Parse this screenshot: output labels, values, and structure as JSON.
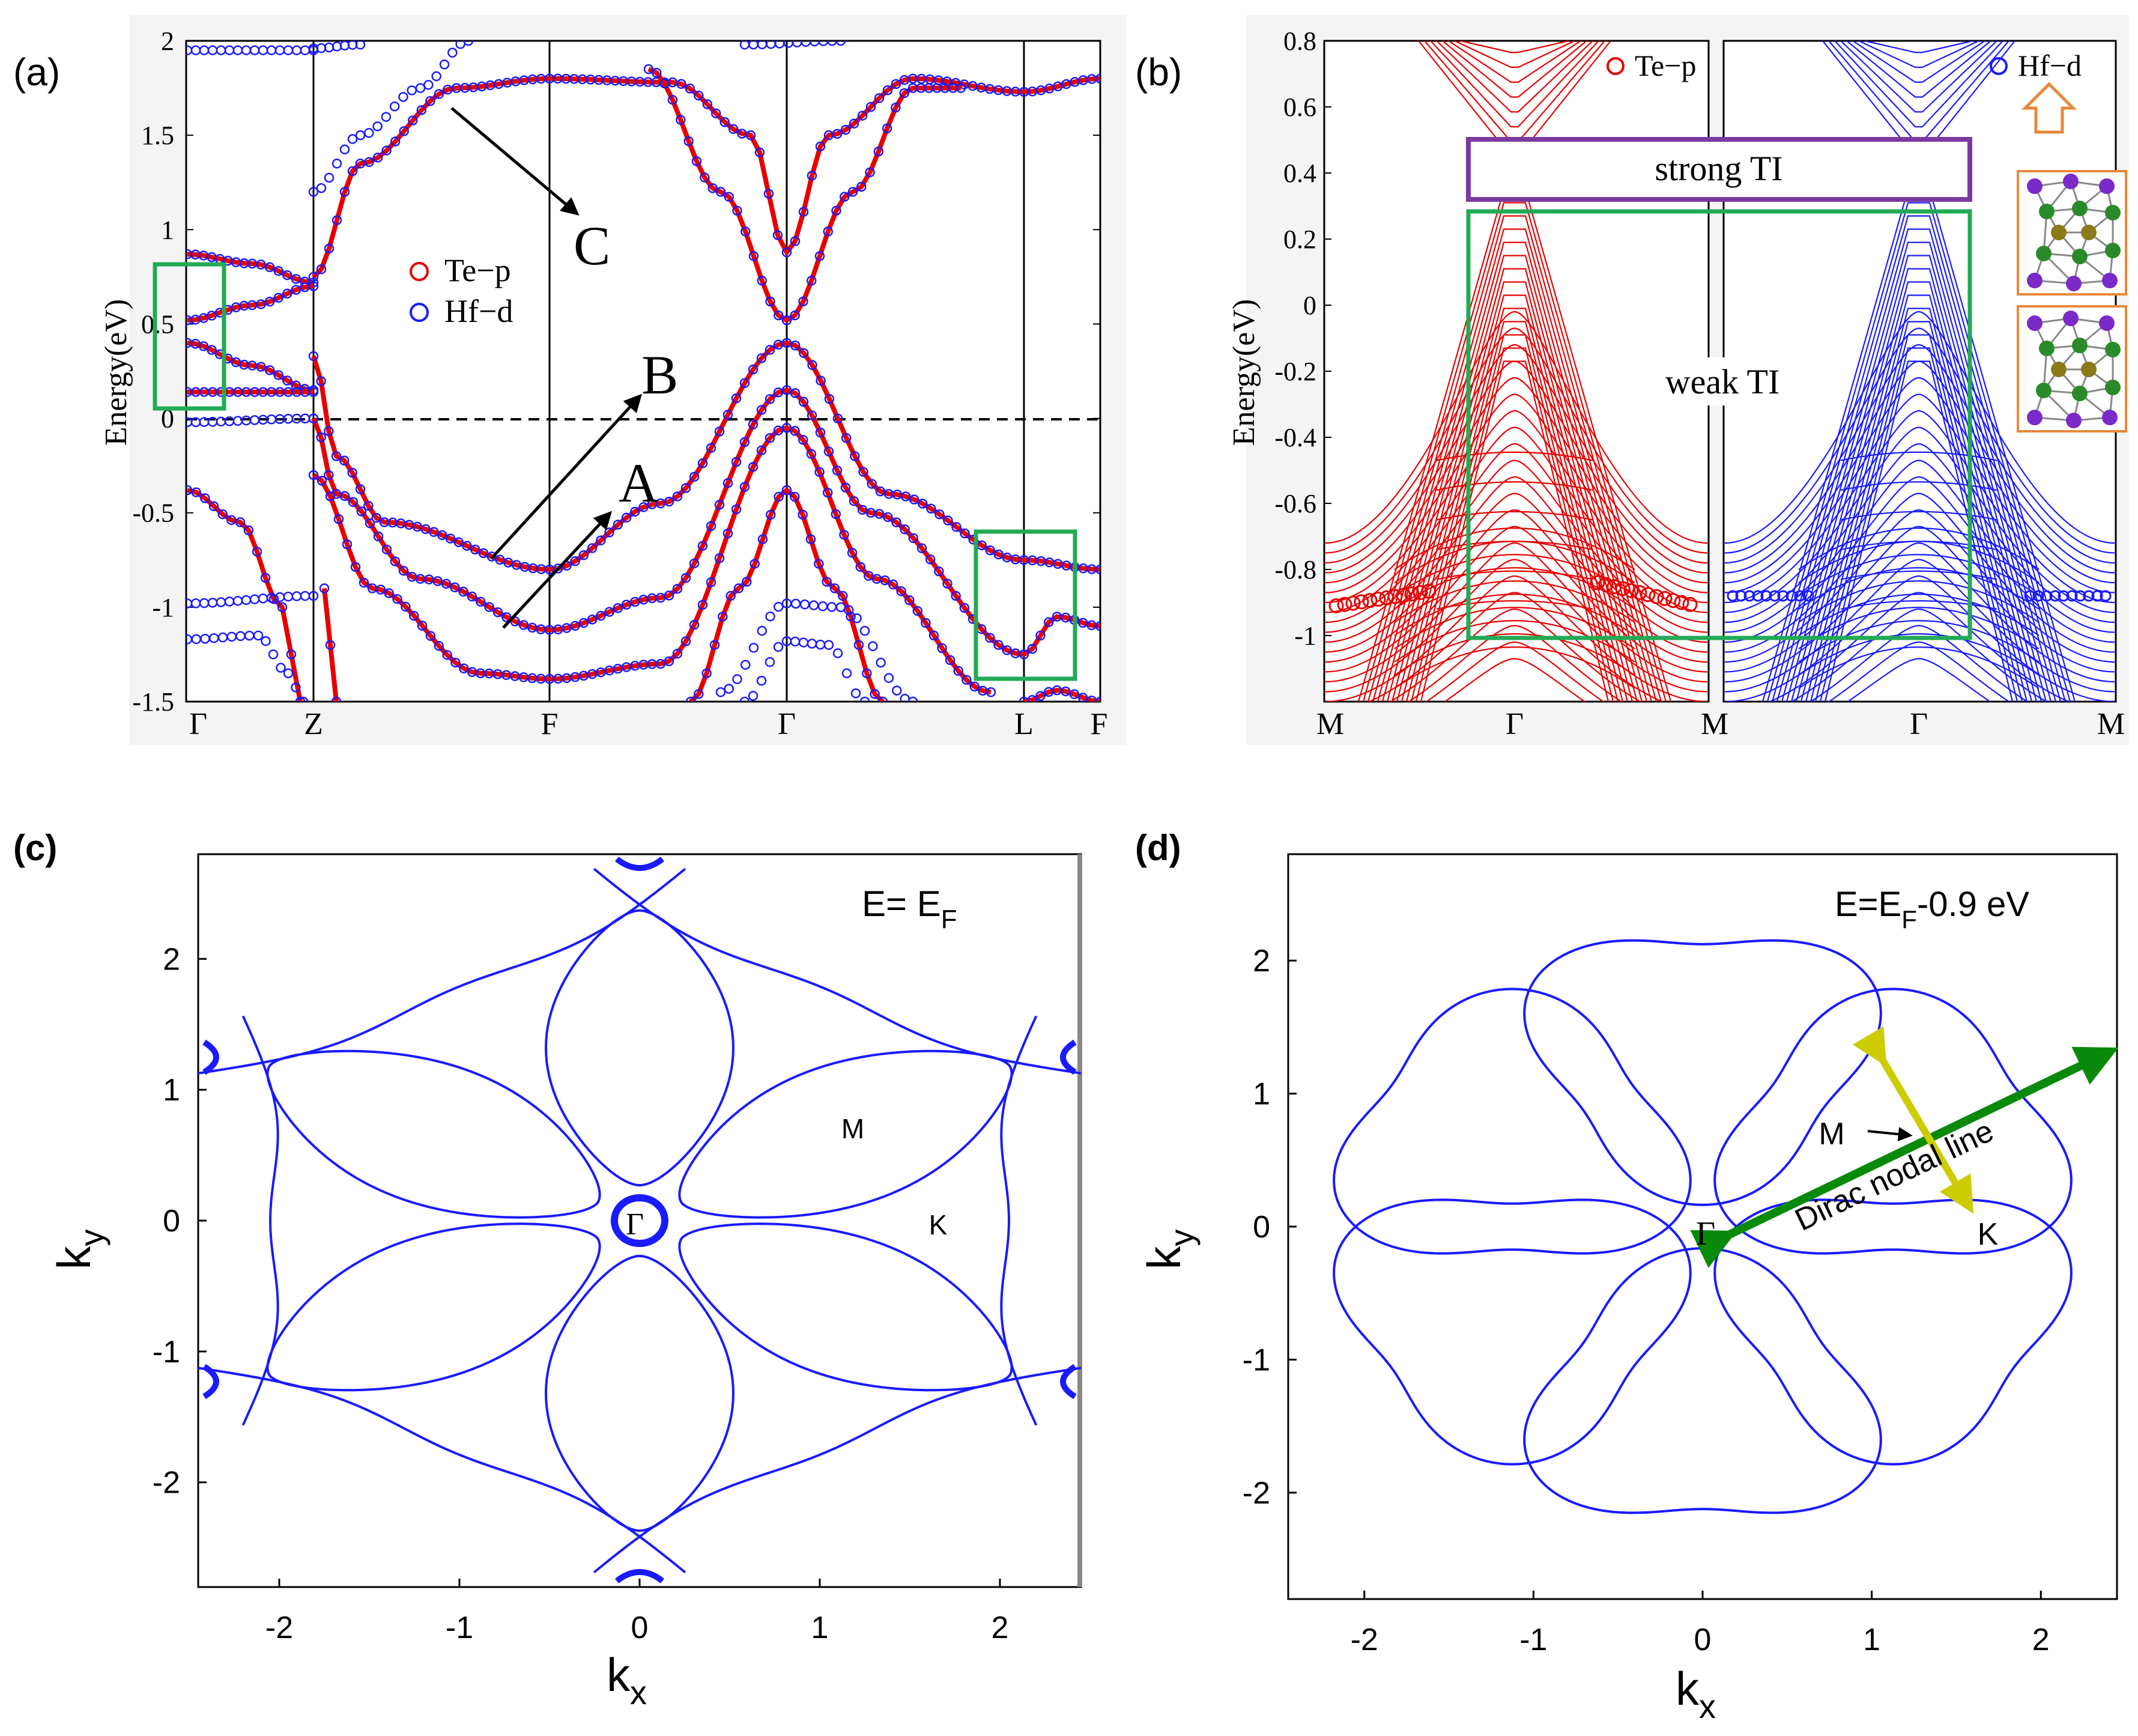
{
  "figure": {
    "panels": [
      "(a)",
      "(b)",
      "(c)",
      "(d)"
    ]
  },
  "chart_data": [
    {
      "type": "line",
      "panel": "(a)",
      "title": "",
      "ylabel": "Energy(eV)",
      "ylim": [
        -1.5,
        2
      ],
      "yticks": [
        "2",
        "1.5",
        "1",
        "0.5",
        "0",
        "-0.5",
        "-1",
        "-1.5"
      ],
      "kpath": [
        "Γ",
        "Z",
        "F",
        "Γ",
        "L",
        "F"
      ],
      "legend": [
        {
          "name": "Te−p",
          "color": "#e60000"
        },
        {
          "name": "Hf−d",
          "color": "#1a1aff"
        }
      ],
      "annotations": [
        "A",
        "B",
        "C"
      ],
      "fermi_level": 0
    },
    {
      "type": "line",
      "panel": "(b)",
      "ylabel": "Energy(eV)",
      "ylim": [
        -1.2,
        0.8
      ],
      "yticks": [
        "0.8",
        "0.6",
        "0.4",
        "0.2",
        "0",
        "-0.2",
        "-0.4",
        "-0.6",
        "-0.8",
        "-1"
      ],
      "kpath": [
        "M",
        "Γ",
        "M",
        "Γ",
        "M"
      ],
      "legend": [
        {
          "name": "Te−p",
          "color": "#e60000"
        },
        {
          "name": "Hf−d",
          "color": "#1a1aff"
        }
      ],
      "annotations": [
        "strong TI",
        "weak TI"
      ]
    },
    {
      "type": "scatter",
      "panel": "(c)",
      "title": "E= E",
      "title_sub": "F",
      "xlabel": "k",
      "xlabel_sub": "x",
      "ylabel": "k",
      "ylabel_sub": "y",
      "xticks": [
        "-2",
        "-1",
        "0",
        "1",
        "2"
      ],
      "yticks": [
        "2",
        "1",
        "0",
        "-1",
        "-2"
      ],
      "xlim": [
        -2.45,
        2.45
      ],
      "ylim": [
        -2.8,
        2.8
      ],
      "points": [
        "Γ",
        "M",
        "K"
      ]
    },
    {
      "type": "scatter",
      "panel": "(d)",
      "title": "E=E",
      "title_sub": "F",
      "title_rest": "-0.9 eV",
      "xlabel": "k",
      "xlabel_sub": "x",
      "ylabel": "k",
      "ylabel_sub": "y",
      "xticks": [
        "-2",
        "-1",
        "0",
        "1",
        "2"
      ],
      "yticks": [
        "2",
        "1",
        "0",
        "-1",
        "-2"
      ],
      "xlim": [
        -2.45,
        2.45
      ],
      "ylim": [
        -2.8,
        2.8
      ],
      "points": [
        "Γ",
        "M",
        "K"
      ],
      "annotation": "Dirac nodal line"
    }
  ],
  "colors": {
    "te": "#e60000",
    "hf": "#1a1aff",
    "green_box": "#22aa55",
    "purple_box": "#7a3aa0",
    "fermi_surface": "#1a1aff",
    "yellow_arrow": "#cccc00",
    "green_arrow": "#0a8a0a"
  }
}
